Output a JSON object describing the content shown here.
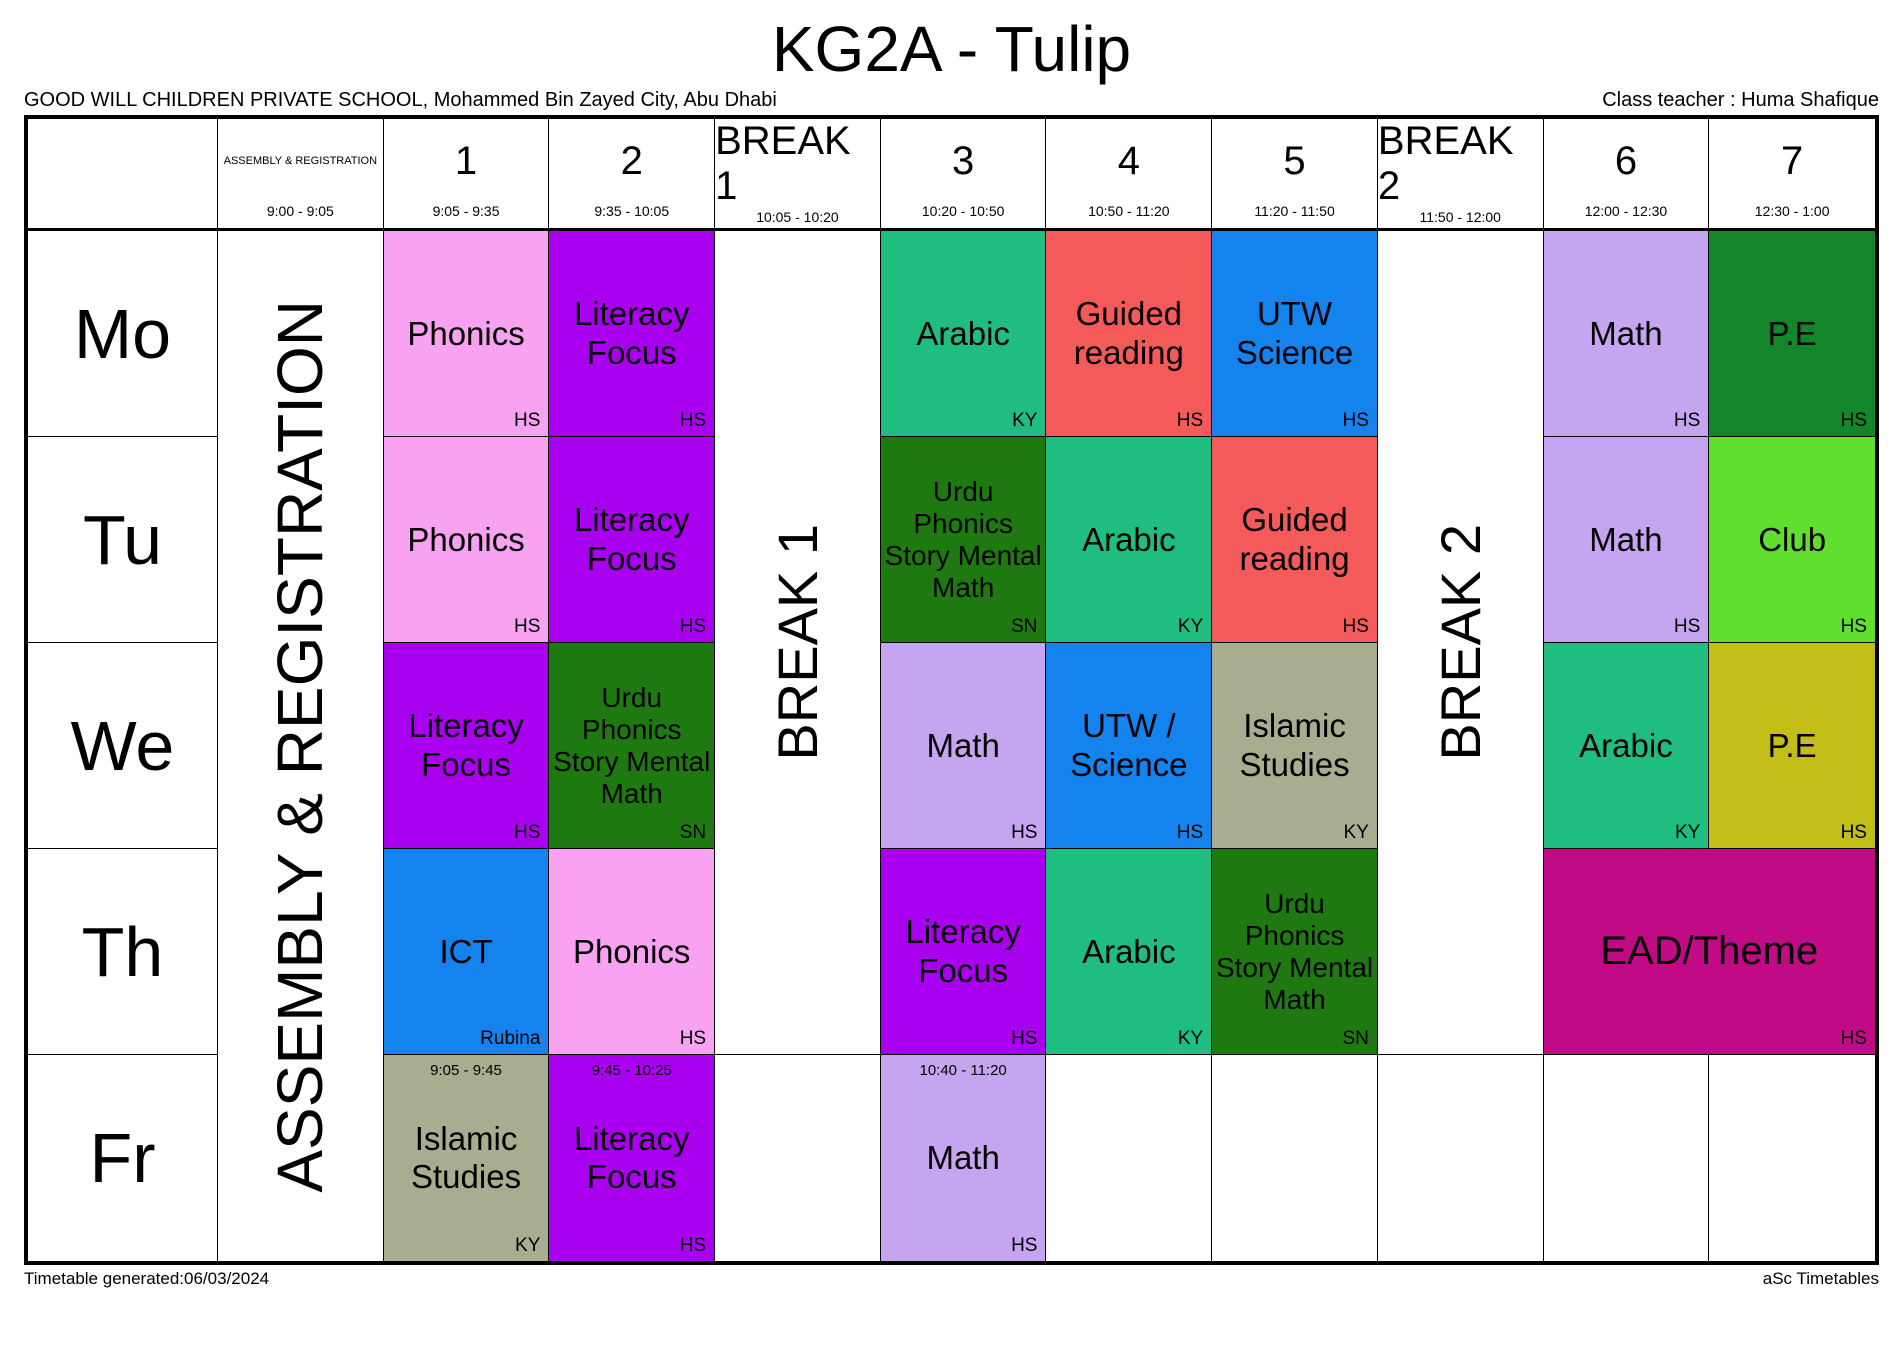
{
  "title": "KG2A - Tulip",
  "school": "GOOD WILL CHILDREN PRIVATE SCHOOL, Mohammed Bin Zayed City, Abu Dhabi",
  "class_teacher": "Class teacher : Huma Shafique",
  "footer": {
    "generated": "Timetable generated:06/03/2024",
    "brand": "aSc Timetables"
  },
  "header_columns": [
    {
      "label": "ASSEMBLY & REGISTRATION",
      "time": "9:00 - 9:05"
    },
    {
      "label": "1",
      "time": "9:05 - 9:35"
    },
    {
      "label": "2",
      "time": "9:35 - 10:05"
    },
    {
      "label": "BREAK 1",
      "time": "10:05 - 10:20"
    },
    {
      "label": "3",
      "time": "10:20 - 10:50"
    },
    {
      "label": "4",
      "time": "10:50 - 11:20"
    },
    {
      "label": "5",
      "time": "11:20 - 11:50"
    },
    {
      "label": "BREAK 2",
      "time": "11:50 - 12:00"
    },
    {
      "label": "6",
      "time": "12:00 - 12:30"
    },
    {
      "label": "7",
      "time": "12:30 - 1:00"
    }
  ],
  "days": [
    "Mo",
    "Tu",
    "We",
    "Th",
    "Fr"
  ],
  "vertical_labels": {
    "assembly": "ASSEMBLY & REGISTRATION",
    "break1": "BREAK 1",
    "break2": "BREAK 2"
  },
  "colors": {
    "pink": "#f8a2f1",
    "violet": "#aa00f0",
    "green": "#1fbd80",
    "red": "#f35a59",
    "blue": "#1583ee",
    "lilac": "#c5a5ef",
    "dark_green": "#13862b",
    "bright_green": "#61df2e",
    "forest_green": "#1e7a10",
    "olive_gray": "#a9ac8e",
    "olive_yellow": "#c3bd17",
    "magenta": "#c10b86"
  },
  "lessons": [
    {
      "day": "Mo",
      "period": "1",
      "subject": "Phonics",
      "teacher": "HS"
    },
    {
      "day": "Mo",
      "period": "2",
      "subject": "Literacy Focus",
      "teacher": "HS"
    },
    {
      "day": "Mo",
      "period": "3",
      "subject": "Arabic",
      "teacher": "KY"
    },
    {
      "day": "Mo",
      "period": "4",
      "subject": "Guided reading",
      "teacher": "HS"
    },
    {
      "day": "Mo",
      "period": "5",
      "subject": "UTW Science",
      "teacher": "HS"
    },
    {
      "day": "Mo",
      "period": "6",
      "subject": "Math",
      "teacher": "HS"
    },
    {
      "day": "Mo",
      "period": "7",
      "subject": "P.E",
      "teacher": "HS"
    },
    {
      "day": "Tu",
      "period": "1",
      "subject": "Phonics",
      "teacher": "HS"
    },
    {
      "day": "Tu",
      "period": "2",
      "subject": "Literacy Focus",
      "teacher": "HS"
    },
    {
      "day": "Tu",
      "period": "3",
      "subject": "Urdu Phonics Story Mental Math",
      "teacher": "SN"
    },
    {
      "day": "Tu",
      "period": "4",
      "subject": "Arabic",
      "teacher": "KY"
    },
    {
      "day": "Tu",
      "period": "5",
      "subject": "Guided reading",
      "teacher": "HS"
    },
    {
      "day": "Tu",
      "period": "6",
      "subject": "Math",
      "teacher": "HS"
    },
    {
      "day": "Tu",
      "period": "7",
      "subject": "Club",
      "teacher": "HS"
    },
    {
      "day": "We",
      "period": "1",
      "subject": "Literacy Focus",
      "teacher": "HS"
    },
    {
      "day": "We",
      "period": "2",
      "subject": "Urdu Phonics Story Mental Math",
      "teacher": "SN"
    },
    {
      "day": "We",
      "period": "3",
      "subject": "Math",
      "teacher": "HS"
    },
    {
      "day": "We",
      "period": "4",
      "subject": "UTW / Science",
      "teacher": "HS"
    },
    {
      "day": "We",
      "period": "5",
      "subject": "Islamic Studies",
      "teacher": "KY"
    },
    {
      "day": "We",
      "period": "6",
      "subject": "Arabic",
      "teacher": "KY"
    },
    {
      "day": "We",
      "period": "7",
      "subject": "P.E",
      "teacher": "HS"
    },
    {
      "day": "Th",
      "period": "1",
      "subject": "ICT",
      "teacher": "Rubina"
    },
    {
      "day": "Th",
      "period": "2",
      "subject": "Phonics",
      "teacher": "HS"
    },
    {
      "day": "Th",
      "period": "3",
      "subject": "Literacy Focus",
      "teacher": "HS"
    },
    {
      "day": "Th",
      "period": "4",
      "subject": "Arabic",
      "teacher": "KY"
    },
    {
      "day": "Th",
      "period": "5",
      "subject": "Urdu Phonics Story Mental Math",
      "teacher": "SN"
    },
    {
      "day": "Th",
      "period": "6-7",
      "subject": "EAD/Theme",
      "teacher": "HS"
    },
    {
      "day": "Fr",
      "period": "1",
      "subject": "Islamic Studies",
      "teacher": "KY",
      "time": "9:05 - 9:45"
    },
    {
      "day": "Fr",
      "period": "2",
      "subject": "Literacy Focus",
      "teacher": "HS",
      "time": "9:45 - 10:25"
    },
    {
      "day": "Fr",
      "period": "3",
      "subject": "Math",
      "teacher": "HS",
      "time": "10:40 - 11:20"
    }
  ]
}
